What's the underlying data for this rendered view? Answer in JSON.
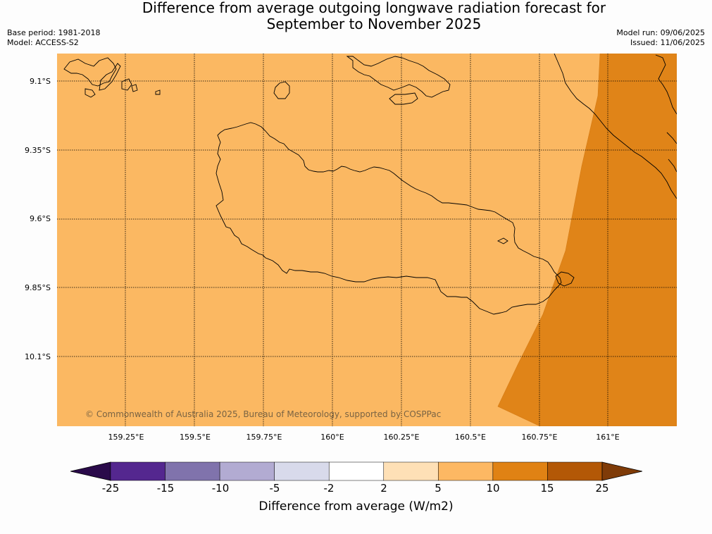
{
  "header": {
    "title_line1": "Difference from average outgoing longwave radiation forecast for",
    "title_line2": "September to November 2025",
    "base_period": "Base period: 1981-2018",
    "model": "Model: ACCESS-S2",
    "model_run": "Model run: 09/06/2025",
    "issued": "Issued: 11/06/2025"
  },
  "map": {
    "copyright": "© Commonwealth of Australia 2025, Bureau of Meteorology, supported by COSPPac",
    "lat_labels": [
      "9.1°S",
      "9.35°S",
      "9.6°S",
      "9.85°S",
      "10.1°S"
    ],
    "lon_labels": [
      "159.25°E",
      "159.5°E",
      "159.75°E",
      "160°E",
      "160.25°E",
      "160.5°E",
      "160.75°E",
      "161°E"
    ],
    "background_color": "#fbb862",
    "anomaly_color": "#e08418"
  },
  "colorbar": {
    "ticks": [
      "-25",
      "-15",
      "-10",
      "-5",
      "-2",
      "2",
      "5",
      "10",
      "15",
      "25"
    ],
    "colors": [
      "#2a0a4a",
      "#54278f",
      "#8073ac",
      "#b2abd2",
      "#d8daeb",
      "#ffffff",
      "#fee0b6",
      "#fdb863",
      "#e08214",
      "#b35806",
      "#7f3b08"
    ],
    "label": "Difference from average (W/m2)"
  }
}
